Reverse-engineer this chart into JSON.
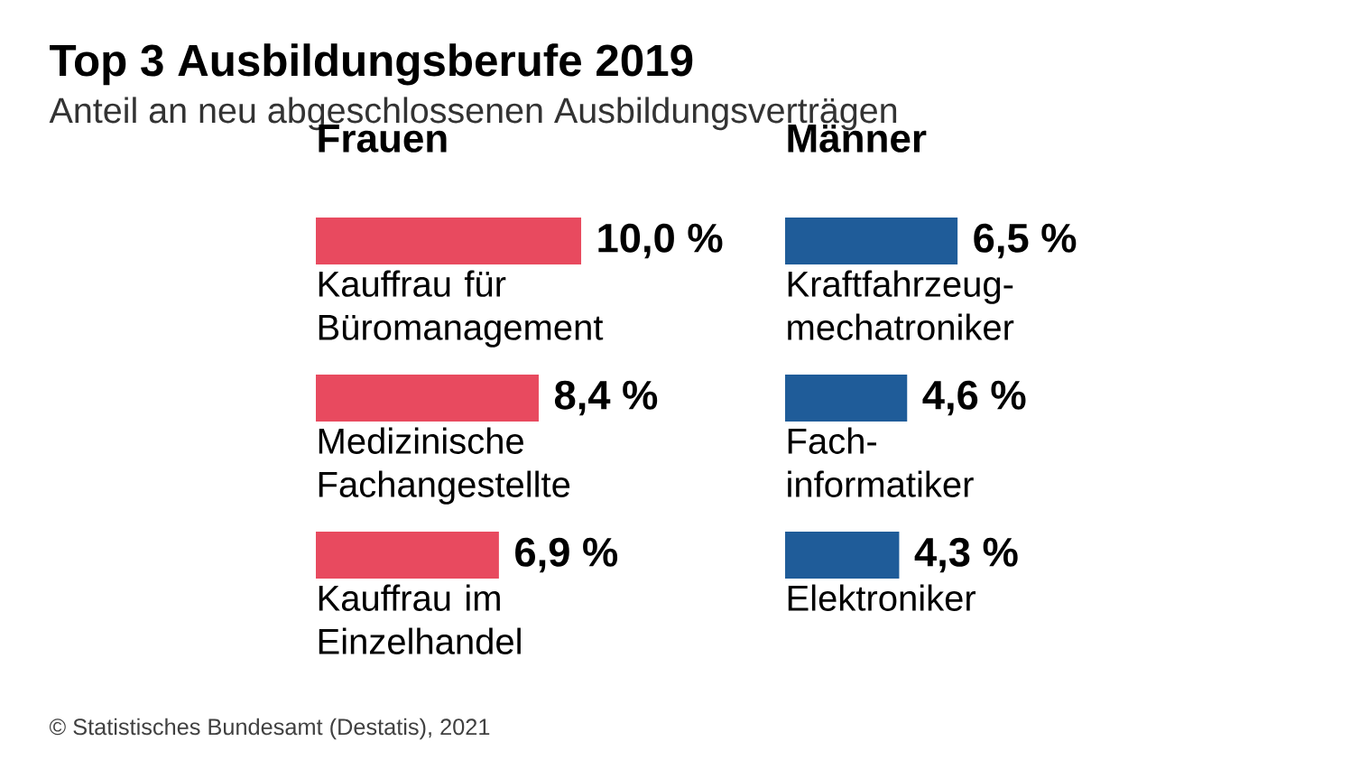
{
  "chart_data": [
    {
      "type": "other",
      "title": "Top 3 Ausbildungsberufe 2019",
      "subtitle": "Anteil an neu abgeschlossenen Ausbildungsverträgen",
      "annotations": [
        "© Statistisches Bundesamt (Destatis), 2021"
      ]
    },
    {
      "type": "bar",
      "orientation": "horizontal",
      "title": "Frauen",
      "categories": [
        "Kauffrau für Büromanagement",
        "Medizinische Fachangestellte",
        "Kauffrau im Einzelhandel"
      ],
      "values": [
        10.0,
        8.4,
        6.9
      ],
      "value_labels": [
        "10,0 %",
        "8,4 %",
        "6,9 %"
      ],
      "color": "#e84a5f"
    },
    {
      "type": "bar",
      "orientation": "horizontal",
      "title": "Männer",
      "categories": [
        "Kraftfahrzeug-mechatroniker",
        "Fach-informatiker",
        "Elektroniker"
      ],
      "values": [
        6.5,
        4.6,
        4.3
      ],
      "value_labels": [
        "6,5 %",
        "4,6 %",
        "4,3 %"
      ],
      "color": "#1f5c99"
    }
  ]
}
